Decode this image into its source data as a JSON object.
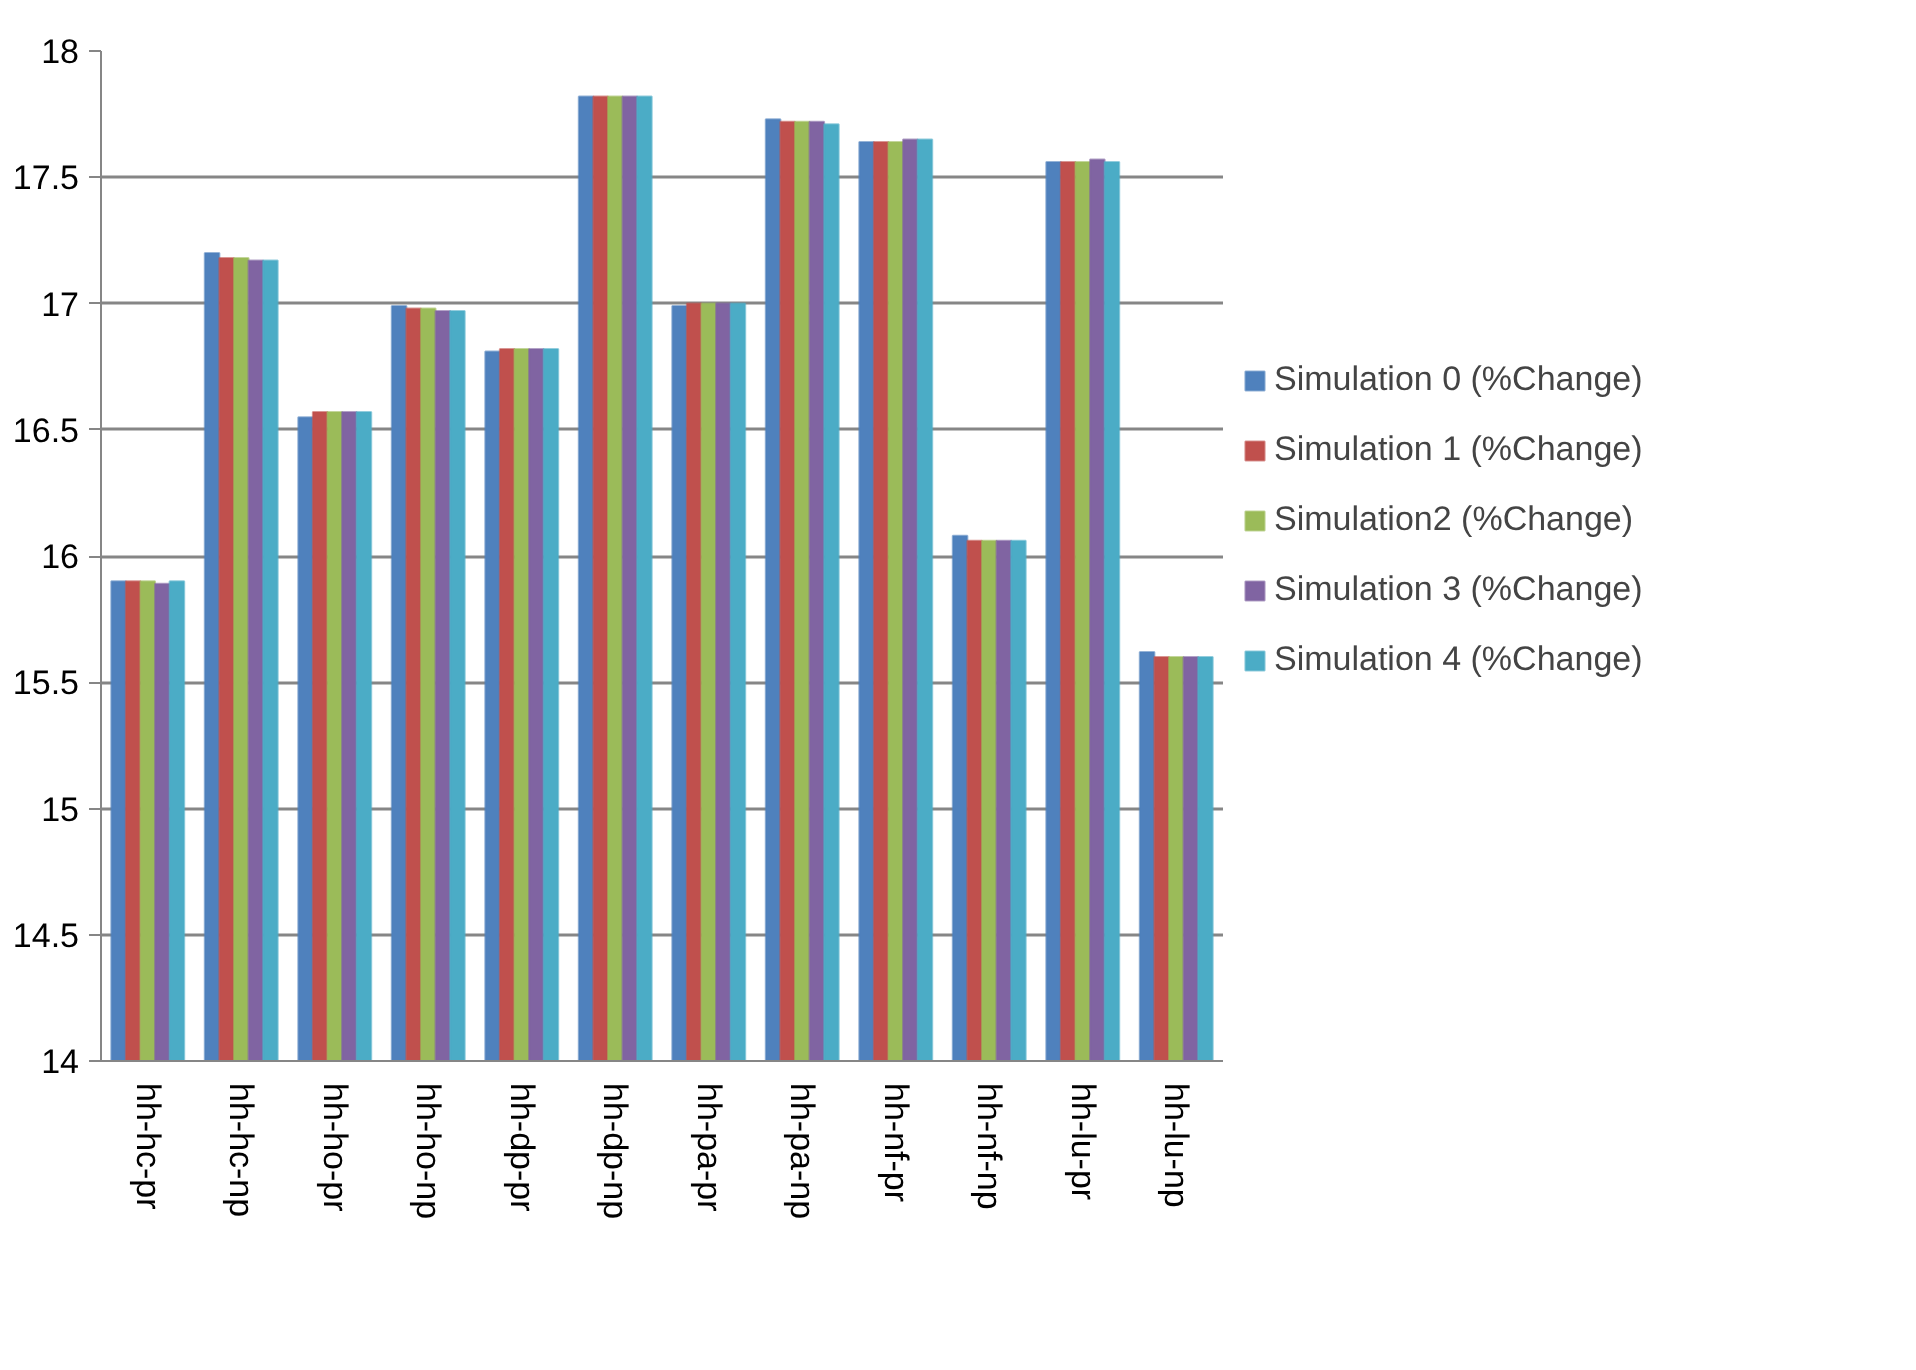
{
  "chart_data": {
    "type": "bar",
    "categories": [
      "hh-hc-pr",
      "hh-hc-np",
      "hh-ho-pr",
      "hh-ho-np",
      "hh-dp-pr",
      "hh-dp-np",
      "hh-pa-pr",
      "hh-pa-np",
      "hh-nf-pr",
      "hh-nf-np",
      "hh-lu-pr",
      "hh-lu-np"
    ],
    "series": [
      {
        "name": "Simulation 0 (%Change)",
        "color": "#4f81bd",
        "values": [
          15.9,
          17.2,
          16.55,
          16.99,
          16.81,
          17.82,
          16.99,
          17.73,
          17.64,
          16.08,
          17.56,
          15.62
        ]
      },
      {
        "name": "Simulation 1 (%Change)",
        "color": "#c0504d",
        "values": [
          15.9,
          17.18,
          16.57,
          16.98,
          16.82,
          17.82,
          17.0,
          17.72,
          17.64,
          16.06,
          17.56,
          15.6
        ]
      },
      {
        "name": "Simulation2 (%Change)",
        "color": "#9bbb59",
        "values": [
          15.9,
          17.18,
          16.57,
          16.98,
          16.82,
          17.82,
          17.0,
          17.72,
          17.64,
          16.06,
          17.56,
          15.6
        ]
      },
      {
        "name": "Simulation 3 (%Change)",
        "color": "#8064a2",
        "values": [
          15.89,
          17.17,
          16.57,
          16.97,
          16.82,
          17.82,
          17.0,
          17.72,
          17.65,
          16.06,
          17.57,
          15.6
        ]
      },
      {
        "name": "Simulation 4 (%Change)",
        "color": "#4bacc6",
        "values": [
          15.9,
          17.17,
          16.57,
          16.97,
          16.82,
          17.82,
          17.0,
          17.71,
          17.65,
          16.06,
          17.56,
          15.6
        ]
      }
    ],
    "ylim": [
      14,
      18
    ],
    "yticks": [
      14,
      14.5,
      15,
      15.5,
      16,
      16.5,
      17,
      17.5,
      18
    ],
    "grid": "y",
    "legend": "right"
  }
}
